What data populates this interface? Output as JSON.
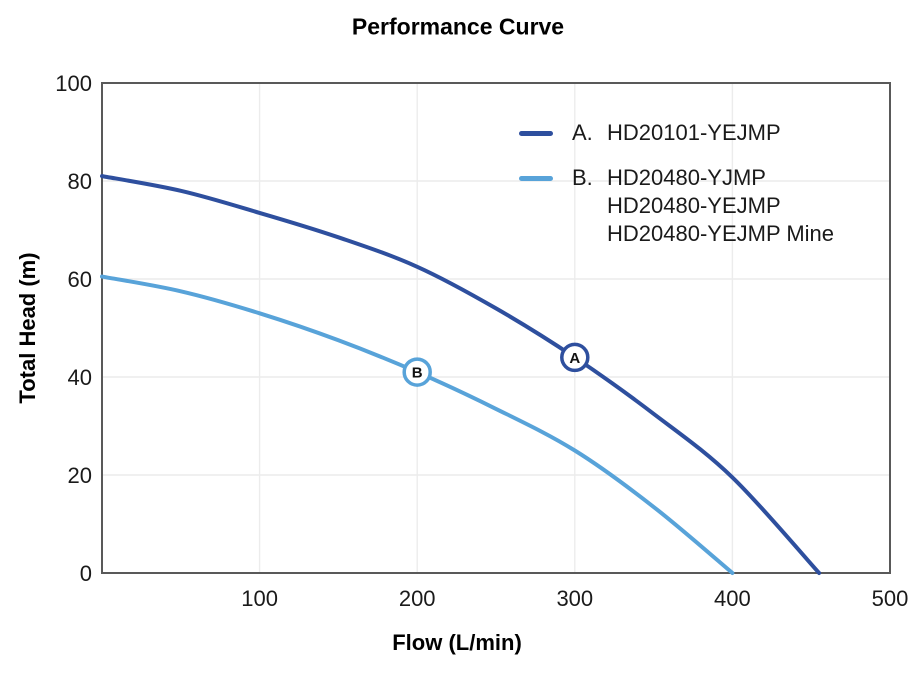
{
  "chart_data": {
    "type": "line",
    "title": "Performance Curve",
    "xlabel": "Flow (L/min)",
    "ylabel": "Total Head (m)",
    "xlim": [
      0,
      500
    ],
    "ylim": [
      0,
      100
    ],
    "x_ticks": [
      100,
      200,
      300,
      400,
      500
    ],
    "y_ticks": [
      0,
      20,
      40,
      60,
      80,
      100
    ],
    "grid": true,
    "legend_position": "upper right inside plot",
    "series": [
      {
        "key": "A.",
        "name": "HD20101-YEJMP",
        "color": "#2e4f9e",
        "points": [
          [
            0,
            81
          ],
          [
            50,
            78
          ],
          [
            100,
            73.5
          ],
          [
            150,
            68.5
          ],
          [
            200,
            62.5
          ],
          [
            250,
            54
          ],
          [
            300,
            44
          ],
          [
            350,
            32.5
          ],
          [
            400,
            19.5
          ],
          [
            455,
            0
          ]
        ],
        "marker": {
          "x": 300,
          "y": 44,
          "label": "A"
        }
      },
      {
        "key": "B.",
        "name": "HD20480-YJMP / HD20480-YEJMP / HD20480-YEJMP Mine",
        "color": "#58a3d9",
        "points": [
          [
            0,
            60.5
          ],
          [
            50,
            57.5
          ],
          [
            100,
            53
          ],
          [
            150,
            47.5
          ],
          [
            200,
            41
          ],
          [
            250,
            33.5
          ],
          [
            300,
            25
          ],
          [
            350,
            13.5
          ],
          [
            400,
            0
          ]
        ],
        "marker": {
          "x": 200,
          "y": 41,
          "label": "B"
        }
      }
    ],
    "colors": {
      "grid": "#ececec",
      "axis_border": "#595959",
      "tick_text": "#1a1a1a",
      "marker_fill": "#ffffff",
      "marker_text": "#111111"
    }
  },
  "legend": {
    "entries": [
      {
        "key": "A.",
        "lines": [
          "HD20101-YEJMP"
        ],
        "color": "#2e4f9e"
      },
      {
        "key": "B.",
        "lines": [
          "HD20480-YJMP",
          "HD20480-YEJMP",
          "HD20480-YEJMP Mine"
        ],
        "color": "#58a3d9"
      }
    ]
  }
}
